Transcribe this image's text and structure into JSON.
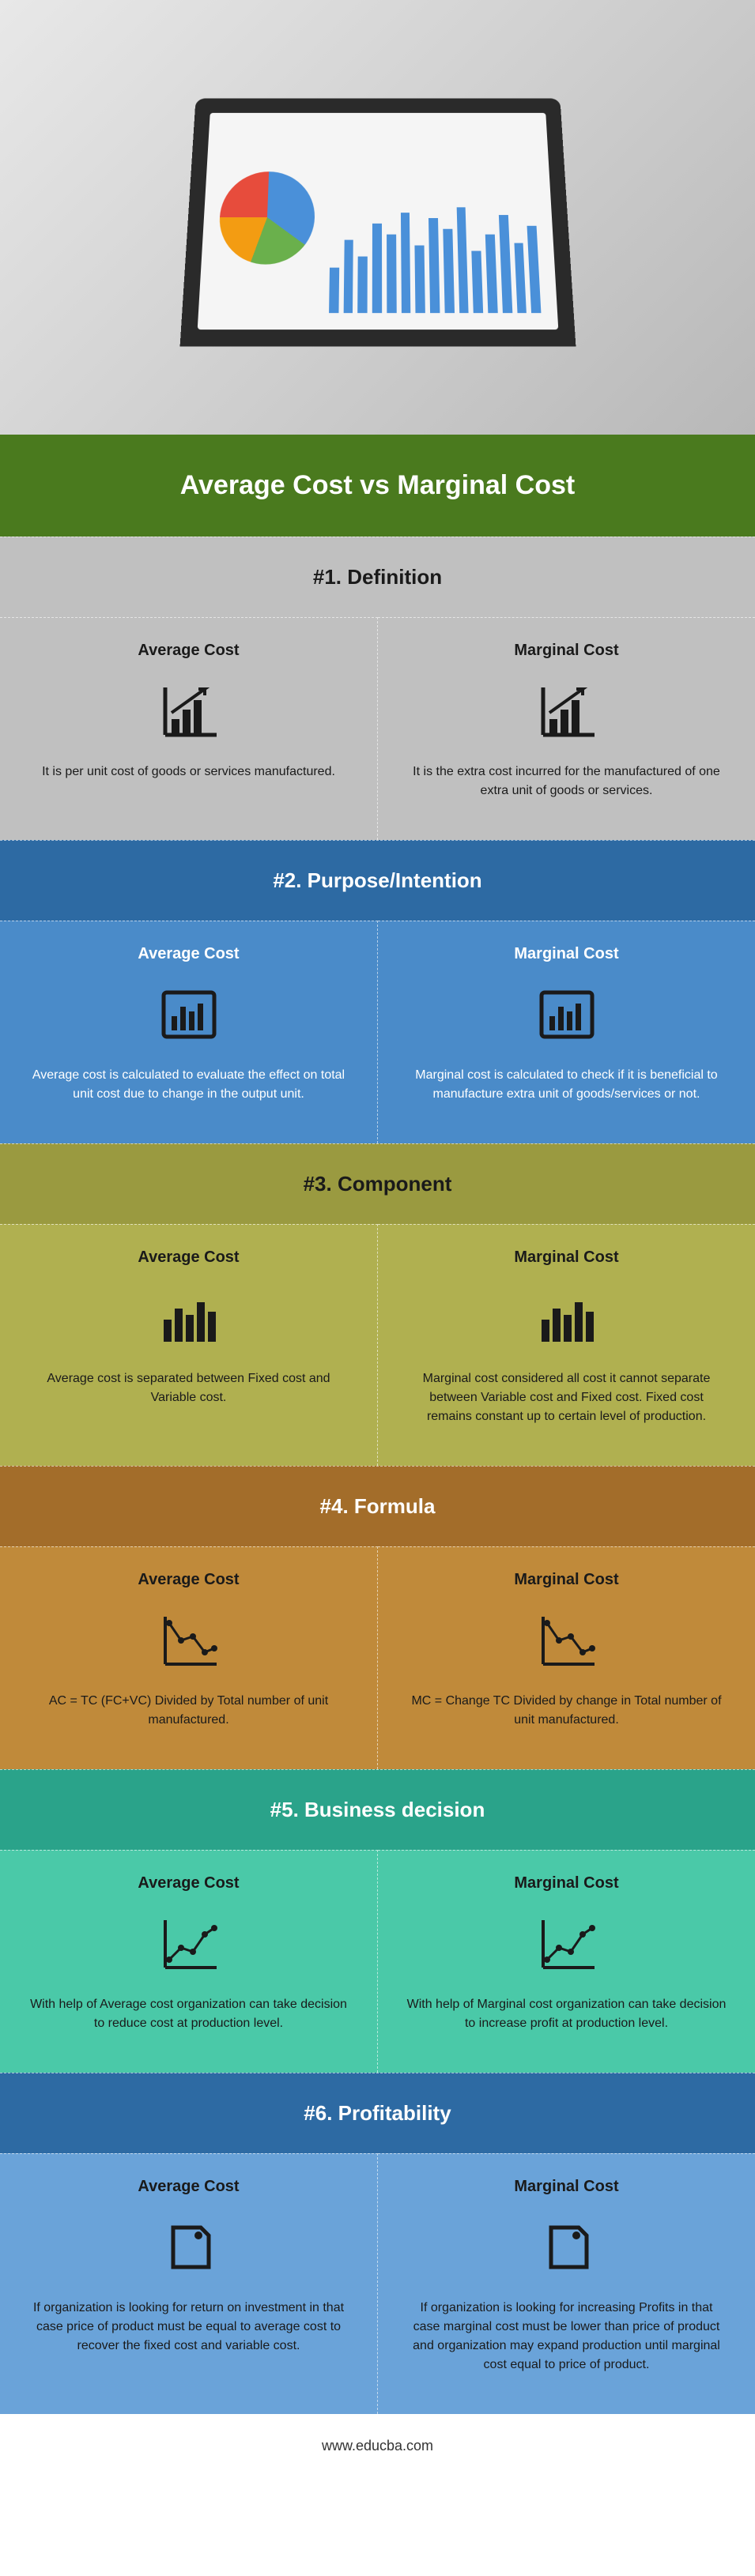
{
  "hero": {
    "bar_heights": [
      40,
      65,
      50,
      80,
      70,
      90,
      60,
      85,
      75,
      95,
      55,
      70,
      88,
      62,
      78
    ]
  },
  "title": "Average Cost vs Marginal Cost",
  "left_label": "Average Cost",
  "right_label": "Marginal Cost",
  "sections": [
    {
      "header": "#1. Definition",
      "header_class": "s1-h",
      "body_class": "s1",
      "icon": "growth-chart",
      "left": "It is per unit cost of goods or services manufactured.",
      "right": "It is the extra cost incurred for the manufactured of one extra unit of goods or services."
    },
    {
      "header": "#2. Purpose/Intention",
      "header_class": "s2-h",
      "body_class": "s2",
      "icon": "bar-box",
      "left": "Average cost is calculated to evaluate the effect on total unit cost due to change in the output unit.",
      "right": "Marginal cost is calculated to check if it is beneficial to manufacture extra unit of goods/services or not."
    },
    {
      "header": "#3. Component",
      "header_class": "s3-h",
      "body_class": "s3",
      "icon": "bars-plain",
      "left": "Average cost is separated between Fixed cost and Variable cost.",
      "right": "Marginal cost considered all cost it cannot separate between Variable cost and Fixed cost. Fixed cost remains constant up to certain level of production."
    },
    {
      "header": "#4. Formula",
      "header_class": "s4-h",
      "body_class": "s4",
      "icon": "line-down",
      "left": "AC = TC (FC+VC) Divided by Total number of unit manufactured.",
      "right": "MC = Change TC Divided by change in Total number of unit manufactured."
    },
    {
      "header": "#5. Business decision",
      "header_class": "s5-h",
      "body_class": "s5",
      "icon": "line-up",
      "left": "With help of Average cost organization can take decision to reduce cost at production level.",
      "right": "With help of Marginal cost organization can take decision to increase profit at production level."
    },
    {
      "header": "#6. Profitability",
      "header_class": "s6-h",
      "body_class": "s6",
      "icon": "price-tag",
      "left": "If organization is looking for return on investment in that case price of product must be equal to average cost to recover the fixed cost and variable cost.",
      "right": "If organization is looking for increasing Profits in that case marginal cost must be lower than price of product and organization may expand production until marginal cost equal to price of product."
    }
  ],
  "footer": "www.educba.com",
  "icon_color": "#1a1a1a"
}
